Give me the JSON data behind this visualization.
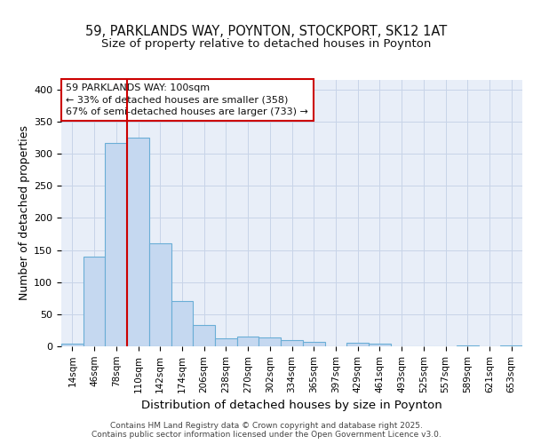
{
  "title": "59, PARKLANDS WAY, POYNTON, STOCKPORT, SK12 1AT",
  "subtitle": "Size of property relative to detached houses in Poynton",
  "xlabel": "Distribution of detached houses by size in Poynton",
  "ylabel": "Number of detached properties",
  "categories": [
    "14sqm",
    "46sqm",
    "78sqm",
    "110sqm",
    "142sqm",
    "174sqm",
    "206sqm",
    "238sqm",
    "270sqm",
    "302sqm",
    "334sqm",
    "365sqm",
    "397sqm",
    "429sqm",
    "461sqm",
    "493sqm",
    "525sqm",
    "557sqm",
    "589sqm",
    "621sqm",
    "653sqm"
  ],
  "values": [
    4,
    140,
    317,
    325,
    160,
    70,
    33,
    12,
    15,
    14,
    10,
    7,
    0,
    5,
    4,
    0,
    0,
    0,
    2,
    0,
    2
  ],
  "bar_color": "#c5d8f0",
  "bar_edge_color": "#6aaed6",
  "grid_color": "#c8d4e8",
  "background_color": "#e8eef8",
  "vline_x_index": 3,
  "vline_color": "#cc0000",
  "annotation_text": "59 PARKLANDS WAY: 100sqm\n← 33% of detached houses are smaller (358)\n67% of semi-detached houses are larger (733) →",
  "annotation_box_color": "#cc0000",
  "ylim": [
    0,
    415
  ],
  "yticks": [
    0,
    50,
    100,
    150,
    200,
    250,
    300,
    350,
    400
  ],
  "footer_text": "Contains HM Land Registry data © Crown copyright and database right 2025.\nContains public sector information licensed under the Open Government Licence v3.0.",
  "title_fontsize": 10.5,
  "subtitle_fontsize": 9.5,
  "axis_label_fontsize": 9,
  "tick_fontsize": 7.5,
  "footer_fontsize": 6.5,
  "ann_fontsize": 8
}
